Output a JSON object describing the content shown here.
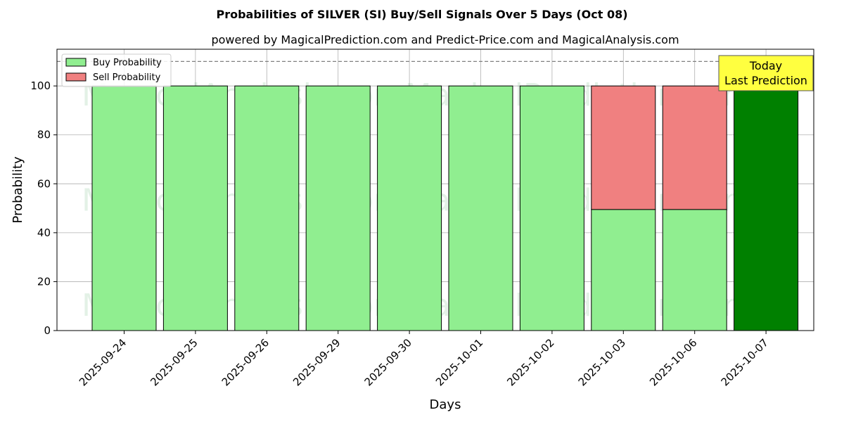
{
  "chart_data": {
    "type": "bar",
    "stacked": true,
    "title": "Probabilities of SILVER (SI) Buy/Sell Signals Over 5 Days (Oct 08)",
    "subtitle": "powered by MagicalPrediction.com and Predict-Price.com and MagicalAnalysis.com",
    "xlabel": "Days",
    "ylabel": "Probability",
    "ylim": [
      0,
      115
    ],
    "yticks": [
      0,
      20,
      40,
      60,
      80,
      100
    ],
    "grid": true,
    "legend_position": "top-left",
    "categories": [
      "2025-09-24",
      "2025-09-25",
      "2025-09-26",
      "2025-09-29",
      "2025-09-30",
      "2025-10-01",
      "2025-10-02",
      "2025-10-03",
      "2025-10-06",
      "2025-10-07"
    ],
    "series": [
      {
        "name": "Buy Probability",
        "color": "#90ee90",
        "values": [
          100,
          100,
          100,
          100,
          100,
          100,
          100,
          49.5,
          49.5,
          100
        ]
      },
      {
        "name": "Sell Probability",
        "color": "#f08080",
        "values": [
          0,
          0,
          0,
          0,
          0,
          0,
          0,
          50.5,
          50.5,
          0
        ]
      }
    ],
    "highlight": {
      "category": "2025-10-07",
      "color": "#008000"
    },
    "reference_line": {
      "y": 110,
      "style": "dashed",
      "color": "#808080"
    },
    "annotation": {
      "line1": "Today",
      "line2": "Last Prediction",
      "background": "#ffff40"
    },
    "watermarks": [
      "MagicalAnalysis.com",
      "MagicalPrediction.com"
    ]
  }
}
